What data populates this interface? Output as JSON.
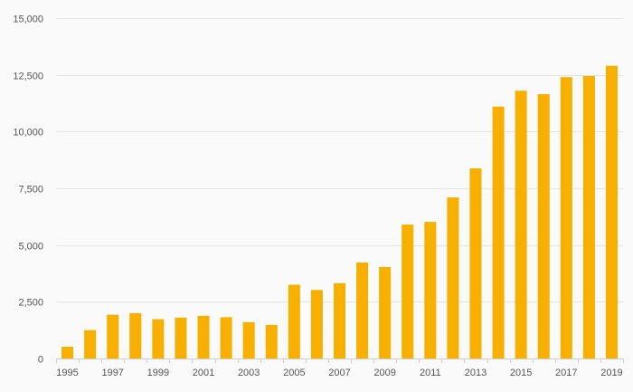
{
  "colors": {
    "bar": "#f7b000",
    "background": "#fafafa",
    "grid": "#e3e3e3",
    "tick_text": "#555555"
  },
  "chart_data": {
    "type": "bar",
    "title": "",
    "xlabel": "",
    "ylabel": "",
    "categories": [
      "1995",
      "1996",
      "1997",
      "1998",
      "1999",
      "2000",
      "2001",
      "2002",
      "2003",
      "2004",
      "2005",
      "2006",
      "2007",
      "2008",
      "2009",
      "2010",
      "2011",
      "2012",
      "2013",
      "2014",
      "2015",
      "2016",
      "2017",
      "2018",
      "2019"
    ],
    "values": [
      520,
      1250,
      1930,
      2000,
      1730,
      1800,
      1880,
      1820,
      1600,
      1480,
      3250,
      3020,
      3320,
      4230,
      4030,
      5900,
      6020,
      7100,
      8380,
      11100,
      11800,
      11650,
      12400,
      12450,
      12900
    ],
    "x_tick_labels": [
      "1995",
      "1997",
      "1999",
      "2001",
      "2003",
      "2005",
      "2007",
      "2009",
      "2011",
      "2013",
      "2015",
      "2017",
      "2019"
    ],
    "y_ticks": [
      0,
      2500,
      5000,
      7500,
      10000,
      12500,
      15000
    ],
    "y_tick_labels": [
      "0",
      "2,500",
      "5,000",
      "7,500",
      "10,000",
      "12,500",
      "15,000"
    ],
    "ylim": [
      0,
      15000
    ],
    "grid": true,
    "legend": "none"
  }
}
